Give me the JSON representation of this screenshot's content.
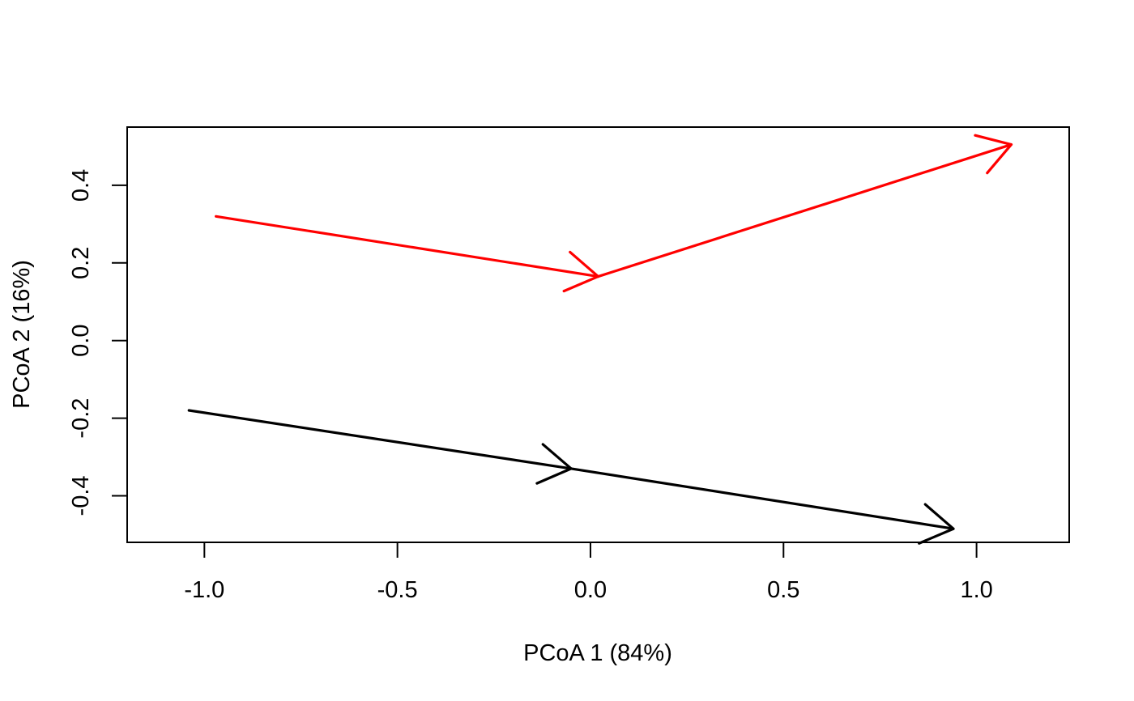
{
  "chart_data": {
    "type": "line",
    "title": "",
    "xlabel": "PCoA 1 (84%)",
    "ylabel": "PCoA 2 (16%)",
    "xlim": [
      -1.2,
      1.24
    ],
    "ylim": [
      -0.52,
      0.55
    ],
    "x_ticks": [
      -1.0,
      -0.5,
      0.0,
      0.5,
      1.0
    ],
    "x_tick_labels": [
      "-1.0",
      "-0.5",
      "0.0",
      "0.5",
      "1.0"
    ],
    "y_ticks": [
      -0.4,
      -0.2,
      0.0,
      0.2,
      0.4
    ],
    "y_tick_labels": [
      "-0.4",
      "-0.2",
      "0.0",
      "0.2",
      "0.4"
    ],
    "grid": false,
    "legend": "none",
    "series": [
      {
        "color": "#ff0000",
        "points": [
          {
            "x": -0.97,
            "y": 0.32
          },
          {
            "x": 0.02,
            "y": 0.165
          },
          {
            "x": 1.09,
            "y": 0.505
          }
        ]
      },
      {
        "color": "#000000",
        "points": [
          {
            "x": -1.04,
            "y": -0.18
          },
          {
            "x": -0.05,
            "y": -0.33
          },
          {
            "x": 0.94,
            "y": -0.485
          }
        ]
      }
    ]
  }
}
